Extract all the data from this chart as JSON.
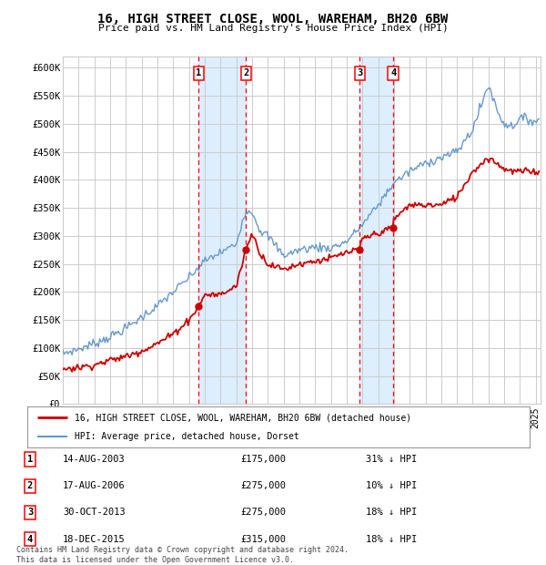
{
  "title": "16, HIGH STREET CLOSE, WOOL, WAREHAM, BH20 6BW",
  "subtitle": "Price paid vs. HM Land Registry's House Price Index (HPI)",
  "ylim": [
    0,
    620000
  ],
  "xlim_start": 1995.0,
  "xlim_end": 2025.3,
  "sales": [
    {
      "label": "1",
      "date": 2003.617,
      "price": 175000,
      "pct": "31% ↓ HPI",
      "display": "14-AUG-2003",
      "price_str": "£175,000"
    },
    {
      "label": "2",
      "date": 2006.617,
      "price": 275000,
      "pct": "10% ↓ HPI",
      "display": "17-AUG-2006",
      "price_str": "£275,000"
    },
    {
      "label": "3",
      "date": 2013.831,
      "price": 275000,
      "pct": "18% ↓ HPI",
      "display": "30-OCT-2013",
      "price_str": "£275,000"
    },
    {
      "label": "4",
      "date": 2015.962,
      "price": 315000,
      "pct": "18% ↓ HPI",
      "display": "18-DEC-2015",
      "price_str": "£315,000"
    }
  ],
  "legend_house": "16, HIGH STREET CLOSE, WOOL, WAREHAM, BH20 6BW (detached house)",
  "legend_hpi": "HPI: Average price, detached house, Dorset",
  "footer": "Contains HM Land Registry data © Crown copyright and database right 2024.\nThis data is licensed under the Open Government Licence v3.0.",
  "house_color": "#cc0000",
  "hpi_color": "#6699cc",
  "shade_color": "#ddeeff",
  "grid_color": "#cccccc",
  "background_color": "#ffffff",
  "hpi_control_years": [
    1995,
    1996,
    1997,
    1998,
    1999,
    2000,
    2001,
    2002,
    2003,
    2004,
    2005,
    2006,
    2006.5,
    2007,
    2007.5,
    2008,
    2009,
    2010,
    2011,
    2012,
    2013,
    2014,
    2015,
    2016,
    2017,
    2018,
    2019,
    2020,
    2021,
    2021.5,
    2022,
    2022.3,
    2022.6,
    2023,
    2023.5,
    2024,
    2025
  ],
  "hpi_control_vals": [
    90000,
    98000,
    108000,
    120000,
    135000,
    155000,
    175000,
    200000,
    225000,
    255000,
    270000,
    285000,
    340000,
    345000,
    310000,
    300000,
    265000,
    275000,
    280000,
    278000,
    290000,
    320000,
    355000,
    395000,
    415000,
    430000,
    440000,
    450000,
    490000,
    530000,
    570000,
    545000,
    520000,
    500000,
    495000,
    510000,
    505000
  ],
  "house_control_years": [
    1995,
    1996,
    1997,
    1998,
    1999,
    2000,
    2001,
    2002,
    2003,
    2003.617,
    2004,
    2005,
    2006,
    2006.617,
    2007,
    2007.5,
    2008,
    2009,
    2010,
    2011,
    2012,
    2013,
    2013.831,
    2014,
    2015,
    2015.962,
    2016,
    2017,
    2018,
    2019,
    2020,
    2021,
    2022,
    2022.5,
    2023,
    2023.5,
    2024,
    2025
  ],
  "house_control_vals": [
    63000,
    65000,
    70000,
    78000,
    85000,
    95000,
    108000,
    125000,
    150000,
    175000,
    195000,
    195000,
    210000,
    275000,
    305000,
    270000,
    250000,
    240000,
    250000,
    255000,
    260000,
    270000,
    275000,
    295000,
    305000,
    315000,
    330000,
    355000,
    355000,
    355000,
    370000,
    415000,
    440000,
    430000,
    420000,
    415000,
    415000,
    415000
  ]
}
